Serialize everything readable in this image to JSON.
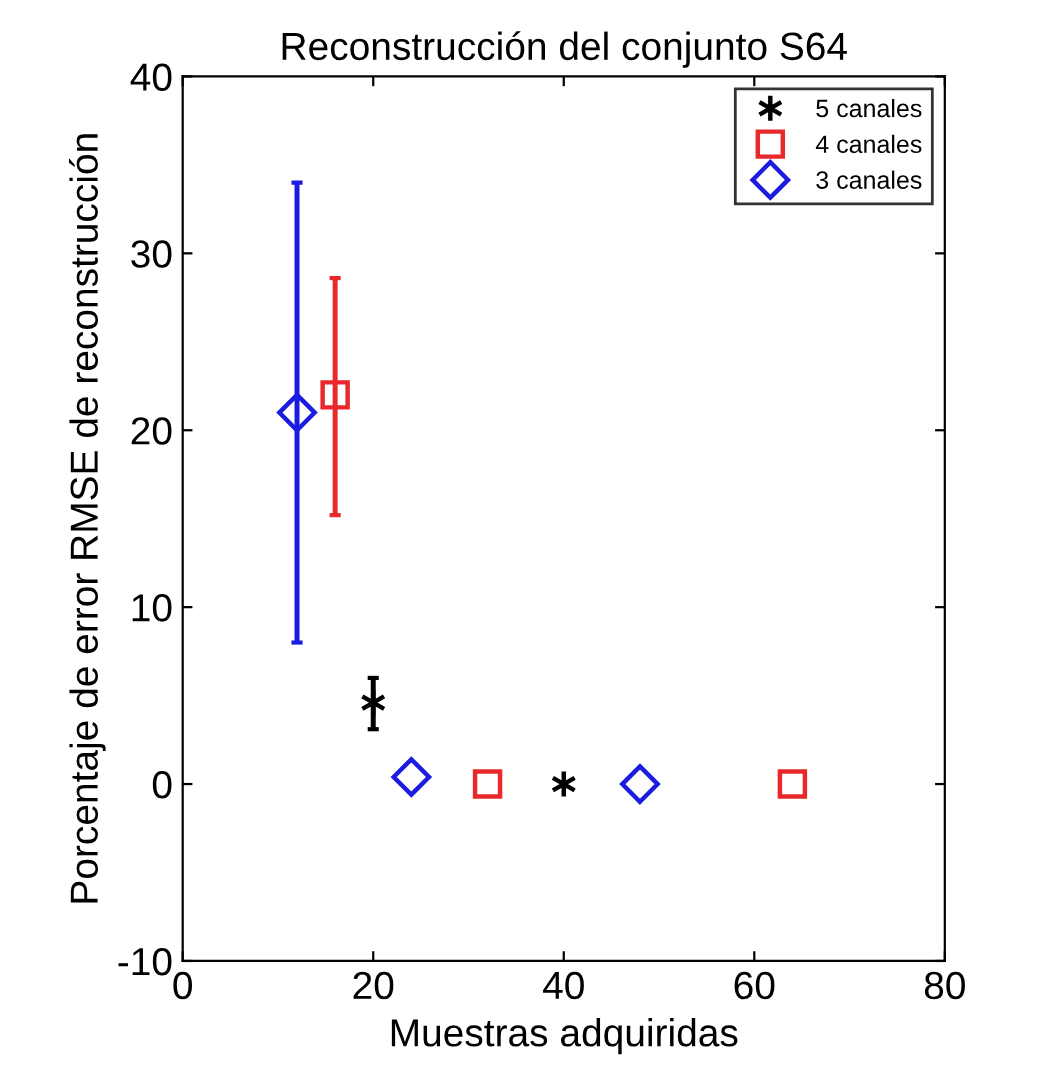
{
  "chart_data": {
    "type": "scatter",
    "title": "Reconstrucción del conjunto S64",
    "xlabel": "Muestras adquiridas",
    "ylabel": "Porcentaje de error RMSE de reconstrucción",
    "xlim": [
      0,
      80
    ],
    "xticks": [
      0,
      20,
      40,
      60,
      80
    ],
    "ylim": [
      -10,
      40
    ],
    "yticks": [
      -10,
      0,
      10,
      20,
      30,
      40
    ],
    "grid": false,
    "legend": "top right",
    "series": [
      {
        "name": "5 canales",
        "color": "#000000",
        "marker": "cross",
        "x": [
          20,
          40
        ],
        "values": [
          4.6,
          0
        ],
        "errors": [
          [
            3.1,
            6.0
          ],
          null
        ]
      },
      {
        "name": "4 canales",
        "color": "#e8282a",
        "marker": "square",
        "x": [
          16,
          32,
          64
        ],
        "values": [
          22,
          0,
          0
        ],
        "errors": [
          [
            15.2,
            28.6
          ],
          null,
          null
        ]
      },
      {
        "name": "3 canales",
        "color": "#1c1ce0",
        "marker": "diamond",
        "x": [
          12,
          24,
          48
        ],
        "values": [
          21,
          0.4,
          0
        ],
        "errors": [
          [
            8,
            34
          ],
          null,
          null
        ]
      }
    ]
  }
}
